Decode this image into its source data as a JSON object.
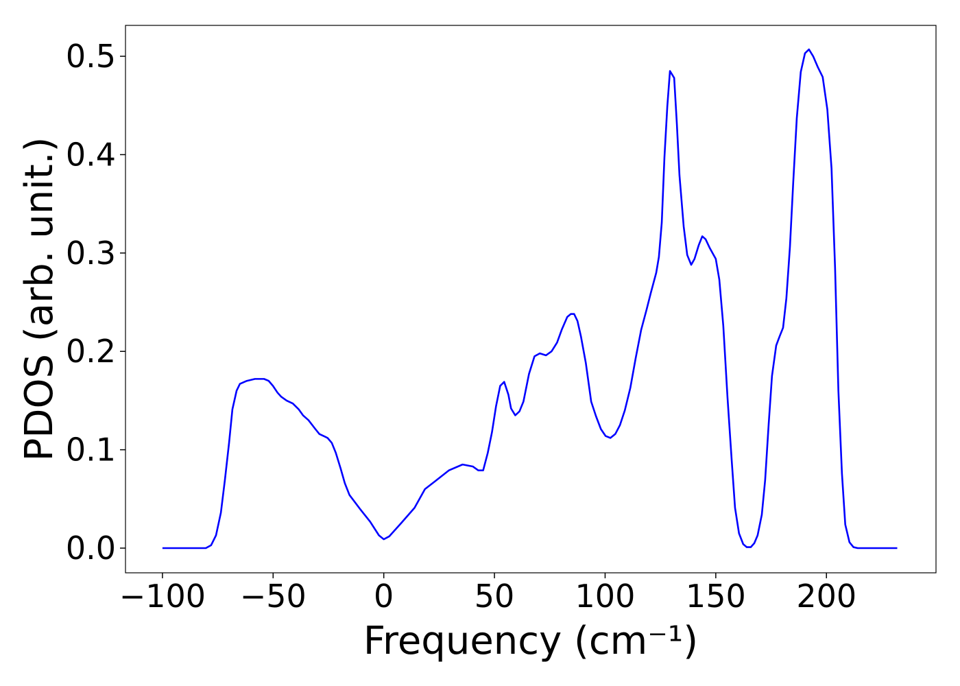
{
  "chart_data": {
    "type": "line",
    "xlabel": "Frequency (cm⁻¹)",
    "ylabel": "PDOS (arb. unit.)",
    "color": "#0000ff",
    "xlim": [
      -116.7,
      249.5
    ],
    "ylim": [
      -0.0251,
      0.5314
    ],
    "xticks": [
      {
        "value": -100,
        "label": "−100"
      },
      {
        "value": -50,
        "label": "−50"
      },
      0,
      50,
      100,
      150,
      200
    ],
    "yticks": [
      {
        "value": 0,
        "label": "0.0"
      },
      0.1,
      0.2,
      0.3,
      0.4,
      0.5
    ],
    "x": [
      -100,
      -80.4,
      -78,
      -75.8,
      -73.6,
      -71.8,
      -69.9,
      -68.4,
      -66.5,
      -65,
      -61.9,
      -58.2,
      -54.1,
      -52,
      -50.1,
      -48,
      -46.4,
      -43.9,
      -41.1,
      -38.4,
      -36.5,
      -34,
      -30.9,
      -29.1,
      -26.3,
      -25.4,
      -23.5,
      -21.7,
      -19.5,
      -17.6,
      -15.5,
      -10.8,
      -6.2,
      -2.2,
      0,
      2.5,
      7.7,
      13.9,
      18.6,
      23.2,
      29.4,
      35.6,
      40.2,
      42.7,
      44.9,
      47.0,
      48.9,
      50.7,
      52.6,
      54.4,
      56.3,
      57.5,
      59.4,
      61.3,
      63.1,
      65.6,
      68.1,
      70.5,
      73.3,
      75.8,
      78.3,
      80.4,
      82.9,
      84.5,
      86.0,
      87.5,
      89.1,
      91.3,
      93.7,
      95.9,
      98.1,
      100.2,
      102.4,
      104.6,
      106.7,
      108.9,
      111.4,
      113.8,
      116.3,
      118.8,
      120.6,
      123.1,
      124.3,
      125.6,
      126.8,
      128.1,
      129.3,
      131.2,
      132.4,
      133.6,
      135.5,
      137.1,
      138.9,
      140.4,
      142.3,
      143.9,
      145.4,
      147.3,
      150.0,
      151.6,
      153.4,
      155.3,
      157.2,
      158.7,
      160.5,
      162.4,
      164.0,
      165.8,
      167.4,
      168.9,
      170.8,
      172.3,
      173.9,
      175.4,
      177.3,
      178.8,
      180.4,
      181.9,
      183.5,
      185.0,
      186.6,
      188.4,
      190.3,
      192.1,
      194.0,
      196.1,
      198.3,
      200.4,
      202.3,
      203.9,
      205.4,
      207.0,
      208.5,
      210.4,
      212.2,
      214.1,
      232.0
    ],
    "values": [
      0,
      0,
      0.003,
      0.013,
      0.036,
      0.069,
      0.107,
      0.141,
      0.16,
      0.167,
      0.17,
      0.172,
      0.172,
      0.17,
      0.165,
      0.158,
      0.154,
      0.15,
      0.147,
      0.141,
      0.135,
      0.13,
      0.121,
      0.116,
      0.113,
      0.112,
      0.107,
      0.097,
      0.081,
      0.066,
      0.054,
      0.04,
      0.027,
      0.013,
      0.009,
      0.012,
      0.025,
      0.041,
      0.06,
      0.068,
      0.079,
      0.085,
      0.083,
      0.079,
      0.079,
      0.097,
      0.118,
      0.144,
      0.165,
      0.169,
      0.156,
      0.142,
      0.135,
      0.139,
      0.149,
      0.177,
      0.195,
      0.198,
      0.196,
      0.2,
      0.209,
      0.222,
      0.235,
      0.238,
      0.238,
      0.231,
      0.215,
      0.188,
      0.149,
      0.134,
      0.121,
      0.114,
      0.112,
      0.116,
      0.125,
      0.14,
      0.163,
      0.193,
      0.222,
      0.243,
      0.259,
      0.28,
      0.296,
      0.331,
      0.397,
      0.449,
      0.485,
      0.478,
      0.432,
      0.379,
      0.327,
      0.298,
      0.288,
      0.294,
      0.308,
      0.317,
      0.314,
      0.305,
      0.294,
      0.273,
      0.226,
      0.153,
      0.089,
      0.041,
      0.015,
      0.004,
      0.001,
      0.001,
      0.005,
      0.013,
      0.034,
      0.069,
      0.126,
      0.175,
      0.206,
      0.215,
      0.224,
      0.254,
      0.306,
      0.372,
      0.437,
      0.484,
      0.503,
      0.507,
      0.5,
      0.489,
      0.479,
      0.446,
      0.386,
      0.285,
      0.16,
      0.076,
      0.024,
      0.006,
      0.001,
      0,
      0
    ]
  }
}
